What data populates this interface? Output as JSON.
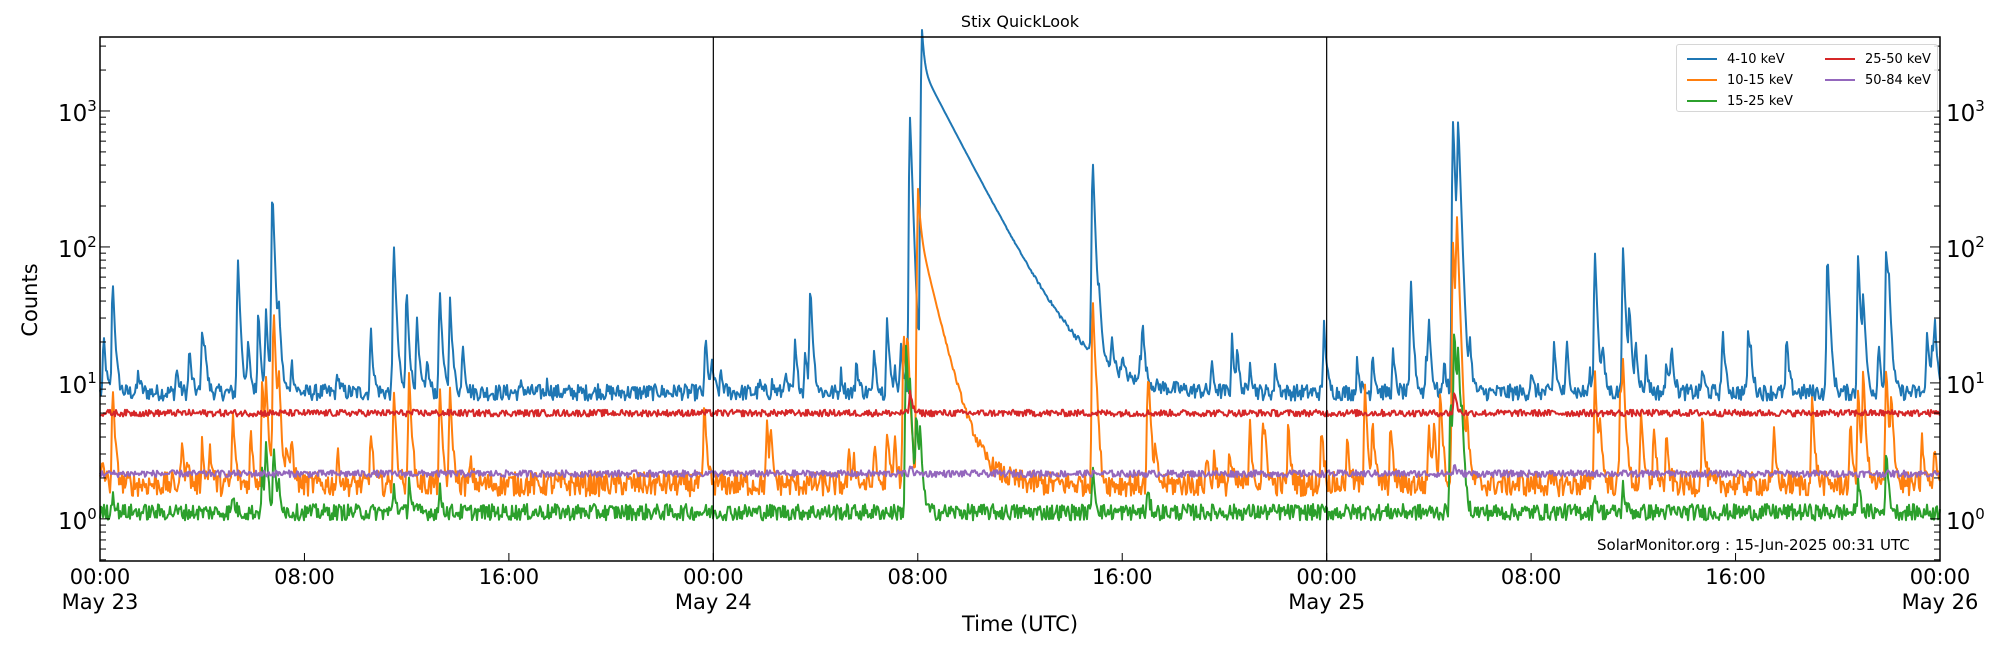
{
  "chart_data": {
    "type": "line",
    "title": "Stix QuickLook",
    "xlabel": "Time (UTC)",
    "ylabel": "Counts",
    "yscale": "log",
    "ylim": [
      0.49,
      3500
    ],
    "xlim_hours": [
      0,
      72
    ],
    "grid": false,
    "legend_position": "upper right",
    "x_ticks": [
      {
        "hour": 0,
        "label": "00:00",
        "date": "May 23"
      },
      {
        "hour": 8,
        "label": "08:00",
        "date": ""
      },
      {
        "hour": 16,
        "label": "16:00",
        "date": ""
      },
      {
        "hour": 24,
        "label": "00:00",
        "date": "May 24"
      },
      {
        "hour": 32,
        "label": "08:00",
        "date": ""
      },
      {
        "hour": 40,
        "label": "16:00",
        "date": ""
      },
      {
        "hour": 48,
        "label": "00:00",
        "date": "May 25"
      },
      {
        "hour": 56,
        "label": "08:00",
        "date": ""
      },
      {
        "hour": 64,
        "label": "16:00",
        "date": ""
      },
      {
        "hour": 72,
        "label": "00:00",
        "date": "May 26"
      }
    ],
    "y_ticks": [
      {
        "value": 1,
        "base": "10",
        "exp": "0"
      },
      {
        "value": 10,
        "base": "10",
        "exp": "1"
      },
      {
        "value": 100,
        "base": "10",
        "exp": "2"
      },
      {
        "value": 1000,
        "base": "10",
        "exp": "3"
      }
    ],
    "day_dividers_hours": [
      24,
      48
    ],
    "series": [
      {
        "name": "4-10 keV",
        "color": "#1f77b4",
        "baseline": 8.5,
        "noise": 0.06,
        "peaks": [
          [
            0.15,
            22
          ],
          [
            0.5,
            57
          ],
          [
            1.5,
            12
          ],
          [
            3.0,
            13
          ],
          [
            3.5,
            18
          ],
          [
            4.0,
            25
          ],
          [
            4.1,
            16
          ],
          [
            5.4,
            80
          ],
          [
            5.8,
            20
          ],
          [
            6.2,
            35
          ],
          [
            6.5,
            34
          ],
          [
            6.75,
            260
          ],
          [
            7.0,
            30
          ],
          [
            7.5,
            15
          ],
          [
            9.3,
            12
          ],
          [
            10.6,
            25
          ],
          [
            11.5,
            105
          ],
          [
            12.0,
            50
          ],
          [
            12.4,
            30
          ],
          [
            12.8,
            15
          ],
          [
            13.3,
            48
          ],
          [
            13.7,
            42
          ],
          [
            14.2,
            20
          ],
          [
            16.5,
            10
          ],
          [
            17.5,
            10
          ],
          [
            19.5,
            9
          ],
          [
            21.8,
            9
          ],
          [
            22.6,
            9
          ],
          [
            23.7,
            22
          ],
          [
            23.95,
            14
          ],
          [
            24.3,
            12
          ],
          [
            25.8,
            10
          ],
          [
            26.3,
            10
          ],
          [
            26.8,
            12
          ],
          [
            27.2,
            20
          ],
          [
            27.6,
            18
          ],
          [
            27.8,
            52
          ],
          [
            29.0,
            12
          ],
          [
            29.6,
            15
          ],
          [
            30.3,
            18
          ],
          [
            30.8,
            30
          ],
          [
            31.1,
            13
          ],
          [
            31.35,
            20
          ],
          [
            31.7,
            900
          ],
          [
            32.15,
            2300
          ],
          [
            38.8,
            25
          ],
          [
            38.85,
            420
          ],
          [
            39.1,
            30
          ],
          [
            39.6,
            18
          ],
          [
            40.0,
            13
          ],
          [
            40.7,
            15
          ],
          [
            40.8,
            25
          ],
          [
            43.5,
            14
          ],
          [
            44.3,
            22
          ],
          [
            44.5,
            17
          ],
          [
            45.0,
            15
          ],
          [
            46.0,
            14
          ],
          [
            47.9,
            28
          ],
          [
            49.2,
            15
          ],
          [
            49.8,
            17
          ],
          [
            50.6,
            17
          ],
          [
            51.3,
            55
          ],
          [
            51.9,
            16
          ],
          [
            52.0,
            28
          ],
          [
            52.6,
            15
          ],
          [
            52.95,
            850
          ],
          [
            53.15,
            800
          ],
          [
            53.6,
            20
          ],
          [
            56.0,
            12
          ],
          [
            56.9,
            20
          ],
          [
            57.4,
            20
          ],
          [
            58.3,
            12
          ],
          [
            58.5,
            90
          ],
          [
            58.8,
            18
          ],
          [
            59.6,
            100
          ],
          [
            59.85,
            35
          ],
          [
            60.1,
            20
          ],
          [
            60.5,
            15
          ],
          [
            61.3,
            15
          ],
          [
            61.5,
            20
          ],
          [
            62.7,
            13
          ],
          [
            63.5,
            25
          ],
          [
            64.5,
            25
          ],
          [
            64.6,
            14
          ],
          [
            66.0,
            22
          ],
          [
            67.6,
            90
          ],
          [
            68.8,
            90
          ],
          [
            69.0,
            40
          ],
          [
            69.6,
            20
          ],
          [
            69.9,
            100
          ],
          [
            70.0,
            40
          ],
          [
            71.5,
            25
          ],
          [
            71.7,
            18
          ],
          [
            71.8,
            28
          ]
        ],
        "decay": [
          [
            32.15,
            2300,
            1.2
          ]
        ]
      },
      {
        "name": "10-15 keV",
        "color": "#ff7f0e",
        "baseline": 1.8,
        "noise": 0.09,
        "peaks": [
          [
            0.1,
            2.8
          ],
          [
            0.5,
            9
          ],
          [
            3.2,
            3.7
          ],
          [
            3.4,
            2.8
          ],
          [
            4.0,
            3.8
          ],
          [
            4.3,
            3.5
          ],
          [
            5.2,
            6
          ],
          [
            5.9,
            4.5
          ],
          [
            6.35,
            11
          ],
          [
            6.5,
            10
          ],
          [
            6.8,
            35
          ],
          [
            7.0,
            10
          ],
          [
            7.3,
            3.4
          ],
          [
            7.5,
            4
          ],
          [
            9.3,
            3.1
          ],
          [
            10.6,
            4.5
          ],
          [
            11.5,
            9
          ],
          [
            12.1,
            12
          ],
          [
            13.3,
            9
          ],
          [
            13.7,
            9
          ],
          [
            14.5,
            2.7
          ],
          [
            23.65,
            7
          ],
          [
            26.1,
            5
          ],
          [
            26.25,
            4
          ],
          [
            29.3,
            3
          ],
          [
            29.5,
            3
          ],
          [
            30.3,
            3.5
          ],
          [
            30.8,
            4.5
          ],
          [
            31.1,
            4
          ],
          [
            31.45,
            25
          ],
          [
            31.6,
            21
          ],
          [
            32.0,
            150
          ],
          [
            38.85,
            42
          ],
          [
            39.0,
            4.5
          ],
          [
            41.0,
            9
          ],
          [
            41.05,
            6
          ],
          [
            41.3,
            3
          ],
          [
            43.3,
            3
          ],
          [
            43.6,
            3
          ],
          [
            44.2,
            3.2
          ],
          [
            45.0,
            5
          ],
          [
            45.5,
            5
          ],
          [
            45.6,
            3.5
          ],
          [
            46.5,
            5
          ],
          [
            47.8,
            5
          ],
          [
            48.8,
            4
          ],
          [
            49.5,
            10
          ],
          [
            49.8,
            5
          ],
          [
            50.5,
            5
          ],
          [
            52.0,
            5
          ],
          [
            52.2,
            5
          ],
          [
            52.45,
            9
          ],
          [
            52.95,
            110
          ],
          [
            53.1,
            150
          ],
          [
            53.5,
            5
          ],
          [
            58.5,
            12
          ],
          [
            58.7,
            5
          ],
          [
            59.5,
            10
          ],
          [
            59.6,
            13
          ],
          [
            60.3,
            6
          ],
          [
            60.8,
            5
          ],
          [
            61.3,
            4
          ],
          [
            62.7,
            6
          ],
          [
            65.5,
            4.5
          ],
          [
            67.0,
            8
          ],
          [
            68.5,
            5
          ],
          [
            68.8,
            9
          ],
          [
            69.0,
            12
          ],
          [
            69.9,
            13
          ],
          [
            70.1,
            8
          ],
          [
            71.3,
            4
          ],
          [
            71.8,
            3.5
          ]
        ],
        "decay": [
          [
            32.0,
            150,
            0.55
          ]
        ]
      },
      {
        "name": "15-25 keV",
        "color": "#2ca02c",
        "baseline": 1.12,
        "noise": 0.06,
        "peaks": [
          [
            0.5,
            1.6
          ],
          [
            5.2,
            1.5
          ],
          [
            6.35,
            2.3
          ],
          [
            6.5,
            3.5
          ],
          [
            6.8,
            3.3
          ],
          [
            7.0,
            1.8
          ],
          [
            11.5,
            1.8
          ],
          [
            12.1,
            2.0
          ],
          [
            13.3,
            1.7
          ],
          [
            31.55,
            20
          ],
          [
            31.7,
            8
          ],
          [
            31.95,
            6
          ],
          [
            32.1,
            4
          ],
          [
            38.85,
            2.5
          ],
          [
            41.0,
            1.6
          ],
          [
            52.85,
            8
          ],
          [
            53.0,
            25
          ],
          [
            53.15,
            15
          ],
          [
            53.3,
            4
          ],
          [
            58.5,
            1.6
          ],
          [
            59.6,
            1.8
          ],
          [
            68.8,
            2.0
          ],
          [
            69.9,
            3.2
          ]
        ],
        "decay": []
      },
      {
        "name": "25-50 keV",
        "color": "#d62728",
        "baseline": 6.0,
        "noise": 0.025,
        "peaks": [
          [
            31.7,
            9
          ],
          [
            53.0,
            9
          ]
        ],
        "decay": []
      },
      {
        "name": "50-84 keV",
        "color": "#9467bd",
        "baseline": 2.15,
        "noise": 0.025,
        "peaks": [
          [
            31.7,
            2.5
          ],
          [
            53.0,
            2.5
          ]
        ],
        "decay": []
      }
    ]
  },
  "legend": {
    "items": [
      {
        "label": "4-10 keV",
        "color": "#1f77b4"
      },
      {
        "label": "10-15 keV",
        "color": "#ff7f0e"
      },
      {
        "label": "15-25 keV",
        "color": "#2ca02c"
      },
      {
        "label": "25-50 keV",
        "color": "#d62728"
      },
      {
        "label": "50-84 keV",
        "color": "#9467bd"
      }
    ]
  },
  "watermark": "SolarMonitor.org : 15-Jun-2025 00:31 UTC"
}
